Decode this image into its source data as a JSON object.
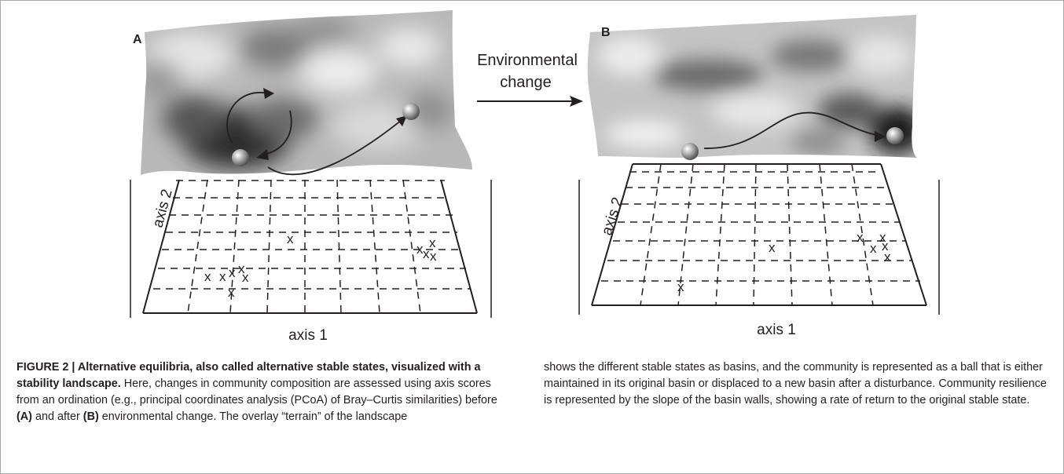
{
  "figure": {
    "panels": [
      {
        "label": "A",
        "axis_x": "axis 1",
        "axis_y": "axis 2",
        "marks": [
          "x",
          "x",
          "x",
          "x",
          "x",
          "x",
          "x",
          "x",
          "x",
          "x",
          "x"
        ]
      },
      {
        "label": "B",
        "axis_x": "axis 1",
        "axis_y": "axis 2",
        "marks": [
          "x",
          "x",
          "x",
          "x",
          "x",
          "x",
          "x",
          "x"
        ]
      }
    ],
    "transition": {
      "line1": "Environmental",
      "line2": "change"
    }
  },
  "caption": {
    "title_bold": "FIGURE 2 | Alternative equilibria, also called alternative stable states, visualized with a stability landscape.",
    "text1": " Here, changes in community composition are assessed using axis scores from an ordination (e.g., principal coordinates analysis (PCoA) of Bray–Curtis similarities) before ",
    "ref_a": "(A)",
    "text2": " and after ",
    "ref_b": "(B)",
    "text3": " environmental change. The overlay “terrain” of the landscape",
    "right": "shows the different stable states as basins, and the community is represented as a ball that is either maintained in its original basin or displaced to a new basin after a disturbance. Community resilience is represented by the slope of the basin walls, showing a rate of return to the original stable state."
  }
}
